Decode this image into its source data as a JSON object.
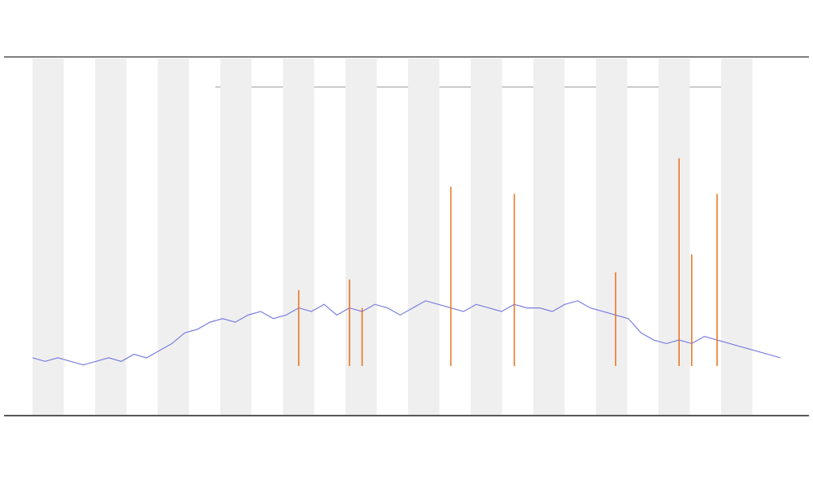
{
  "chart_data": {
    "type": "line",
    "categories": [
      null,
      null,
      null,
      null,
      null,
      null,
      null,
      null,
      null,
      null,
      null,
      null,
      null,
      null,
      null,
      null,
      null,
      null,
      null,
      null,
      null,
      null,
      null,
      null,
      null,
      null,
      null,
      null,
      null,
      null,
      null,
      null,
      null,
      null,
      null,
      null,
      null,
      null,
      null,
      null,
      null,
      null,
      null,
      null,
      null,
      null,
      null,
      null,
      null,
      null,
      null,
      null,
      null,
      null,
      null,
      null,
      null,
      null,
      null,
      null
    ],
    "series": [
      {
        "color": "#7b7fe0",
        "values": [
          16,
          15,
          16,
          15,
          14,
          15,
          16,
          15,
          17,
          16,
          18,
          20,
          23,
          24,
          26,
          27,
          26,
          28,
          29,
          27,
          28,
          30,
          29,
          31,
          28,
          30,
          29,
          31,
          30,
          28,
          30,
          32,
          31,
          30,
          29,
          31,
          30,
          29,
          31,
          30,
          30,
          29,
          31,
          32,
          30,
          29,
          28,
          27,
          23,
          21,
          20,
          21,
          20,
          22,
          21,
          20,
          19,
          18,
          17,
          16
        ]
      },
      {
        "color": "#e8701a",
        "values": [
          null,
          null,
          null,
          null,
          null,
          null,
          null,
          null,
          null,
          null,
          null,
          null,
          null,
          null,
          null,
          null,
          null,
          null,
          null,
          null,
          null,
          35,
          null,
          null,
          null,
          38,
          30,
          null,
          null,
          null,
          null,
          null,
          null,
          64,
          null,
          null,
          null,
          null,
          62,
          null,
          null,
          null,
          null,
          null,
          null,
          null,
          40,
          null,
          null,
          null,
          null,
          72,
          45,
          null,
          62,
          null,
          null,
          null,
          null,
          null
        ]
      }
    ],
    "ylim": [
      0,
      100
    ]
  }
}
